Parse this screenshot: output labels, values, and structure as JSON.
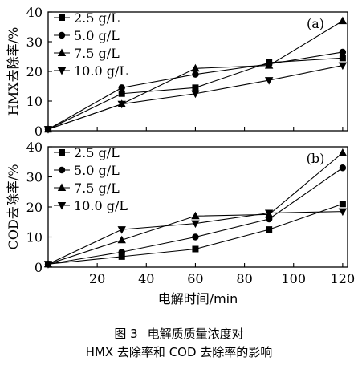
{
  "chart_data": [
    {
      "type": "line",
      "panel_label": "(a)",
      "ylabel": "HMX去除率/%",
      "xlim": [
        0,
        122
      ],
      "ylim": [
        0,
        40
      ],
      "yticks": [
        0,
        10,
        20,
        30,
        40
      ],
      "legend_position": "top-left",
      "series": [
        {
          "name": "2.5 g/L",
          "marker": "square",
          "x": [
            0,
            30,
            60,
            90,
            120
          ],
          "y": [
            0.5,
            12.5,
            14.5,
            23,
            24.5
          ]
        },
        {
          "name": "5.0 g/L",
          "marker": "circle",
          "x": [
            0,
            30,
            60,
            90,
            120
          ],
          "y": [
            0.5,
            14.5,
            19,
            22.5,
            26.5
          ]
        },
        {
          "name": "7.5 g/L",
          "marker": "triangle-up",
          "x": [
            0,
            30,
            60,
            90,
            120
          ],
          "y": [
            0.5,
            9,
            21,
            22,
            37
          ]
        },
        {
          "name": "10.0 g/L",
          "marker": "triangle-down",
          "x": [
            0,
            30,
            60,
            90,
            120
          ],
          "y": [
            0.5,
            9,
            12.5,
            17,
            22
          ]
        }
      ]
    },
    {
      "type": "line",
      "panel_label": "(b)",
      "ylabel": "COD去除率/%",
      "xlabel": "电解时间/min",
      "xlim": [
        0,
        122
      ],
      "ylim": [
        0,
        40
      ],
      "yticks": [
        0,
        10,
        20,
        30,
        40
      ],
      "xticks": [
        20,
        40,
        60,
        80,
        100,
        120
      ],
      "legend_position": "top-left",
      "series": [
        {
          "name": "2.5 g/L",
          "marker": "square",
          "x": [
            0,
            30,
            60,
            90,
            120
          ],
          "y": [
            1,
            3.5,
            6,
            12.5,
            21
          ]
        },
        {
          "name": "5.0 g/L",
          "marker": "circle",
          "x": [
            0,
            30,
            60,
            90,
            120
          ],
          "y": [
            1,
            5,
            10,
            16,
            33
          ]
        },
        {
          "name": "7.5 g/L",
          "marker": "triangle-up",
          "x": [
            0,
            30,
            60,
            90,
            120
          ],
          "y": [
            1,
            9,
            17,
            17.5,
            38
          ]
        },
        {
          "name": "10.0 g/L",
          "marker": "triangle-down",
          "x": [
            0,
            30,
            60,
            90,
            120
          ],
          "y": [
            1,
            12.5,
            14.5,
            18,
            18.5
          ]
        }
      ]
    }
  ],
  "caption": {
    "figure_number": "图 3",
    "title_line1": "电解质质量浓度对",
    "title_line2": "HMX 去除率和 COD 去除率的影响"
  }
}
